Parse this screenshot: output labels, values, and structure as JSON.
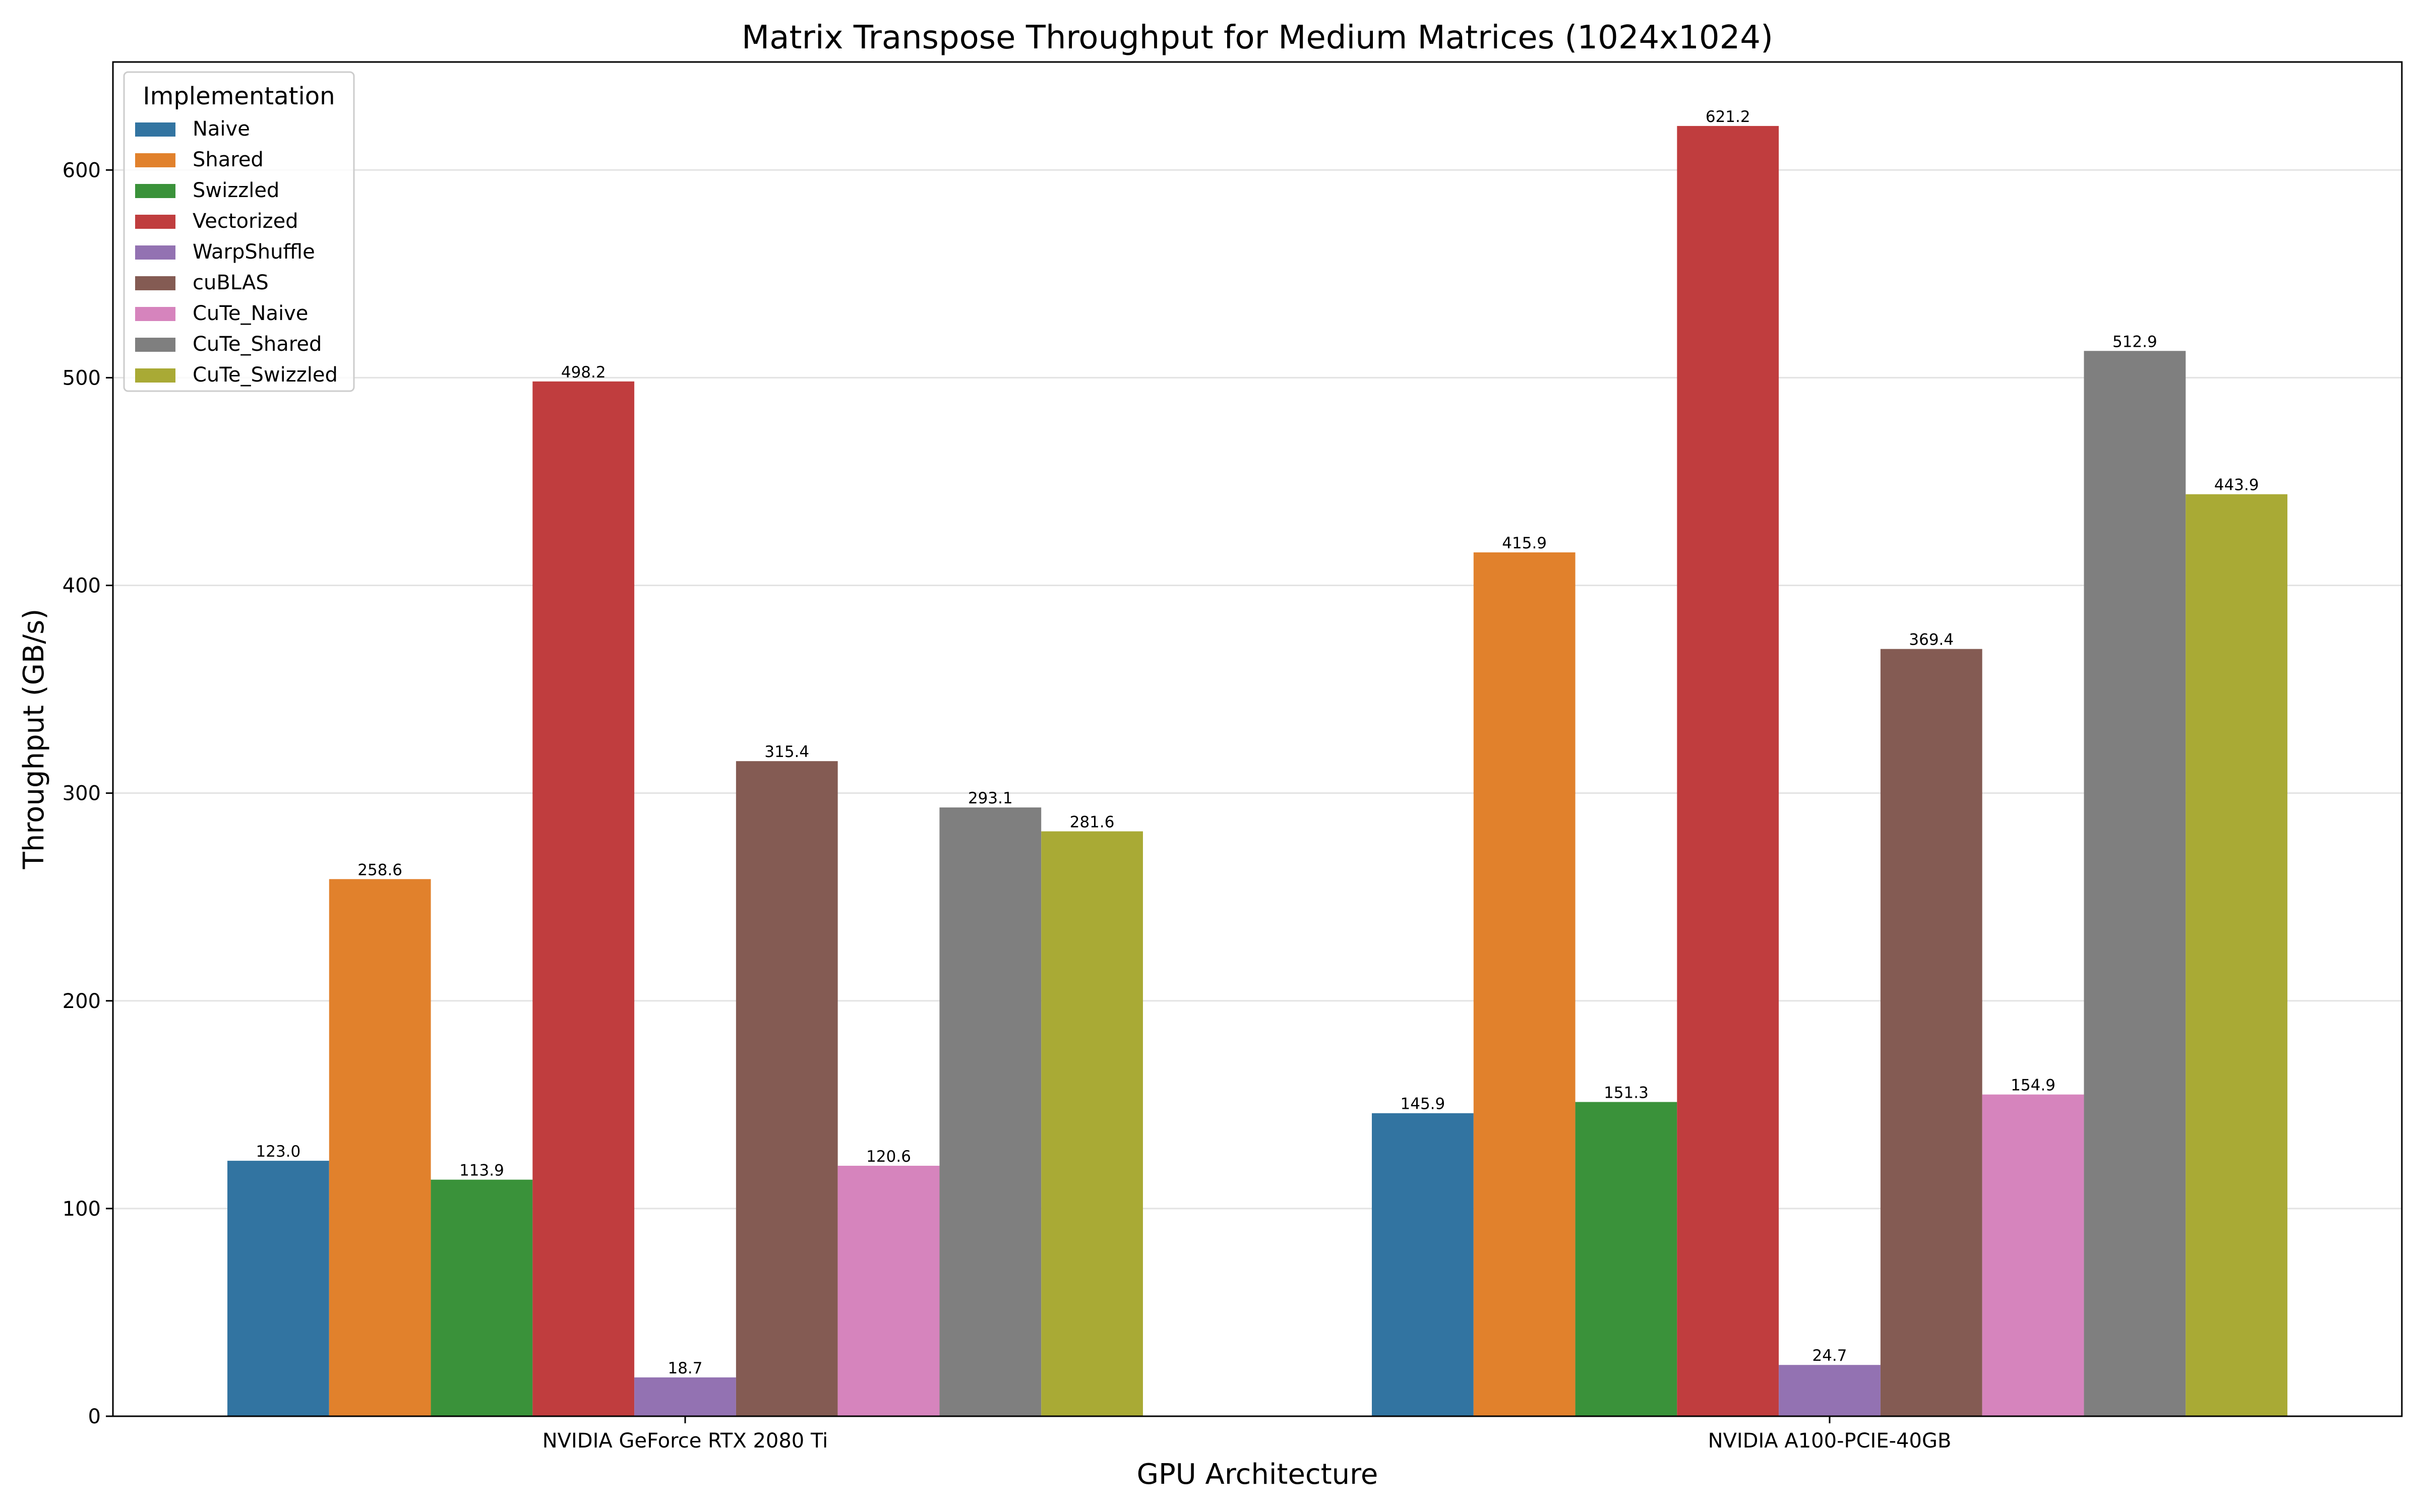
{
  "chart_data": {
    "type": "bar",
    "title": "Matrix Transpose Throughput for Medium Matrices (1024x1024)",
    "xlabel": "GPU Architecture",
    "ylabel": "Throughput (GB/s)",
    "categories": [
      "NVIDIA GeForce RTX 2080 Ti",
      "NVIDIA A100-PCIE-40GB"
    ],
    "ylim": [
      0,
      652
    ],
    "yticks": [
      0,
      100,
      200,
      300,
      400,
      500,
      600
    ],
    "grid": "y",
    "legend": {
      "title": "Implementation",
      "placement": "top-left"
    },
    "series": [
      {
        "name": "Naive",
        "color": "#3274a1",
        "values": [
          123.0,
          145.9
        ]
      },
      {
        "name": "Shared",
        "color": "#e1812c",
        "values": [
          258.6,
          415.9
        ]
      },
      {
        "name": "Swizzled",
        "color": "#3a923a",
        "values": [
          113.9,
          151.3
        ]
      },
      {
        "name": "Vectorized",
        "color": "#c03d3e",
        "values": [
          498.2,
          621.2
        ]
      },
      {
        "name": "WarpShuffle",
        "color": "#9372b2",
        "values": [
          18.7,
          24.7
        ]
      },
      {
        "name": "cuBLAS",
        "color": "#845b53",
        "values": [
          315.4,
          369.4
        ]
      },
      {
        "name": "CuTe_Naive",
        "color": "#d684bd",
        "values": [
          120.6,
          154.9
        ]
      },
      {
        "name": "CuTe_Shared",
        "color": "#7f7f7f",
        "values": [
          293.1,
          512.9
        ]
      },
      {
        "name": "CuTe_Swizzled",
        "color": "#a9aa35",
        "values": [
          281.6,
          443.9
        ]
      }
    ]
  }
}
